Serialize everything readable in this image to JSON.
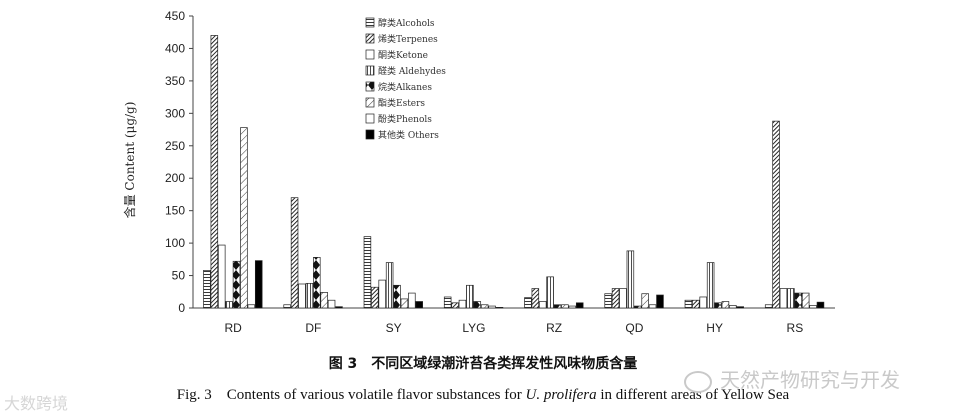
{
  "chart_data": {
    "type": "bar",
    "title": "",
    "xlabel": "",
    "ylabel": "含量 Content (μg/g)",
    "ylim": [
      0,
      450
    ],
    "yticks": [
      0,
      50,
      100,
      150,
      200,
      250,
      300,
      350,
      400,
      450
    ],
    "categories": [
      "RD",
      "DF",
      "SY",
      "LYG",
      "RZ",
      "QD",
      "HY",
      "RS"
    ],
    "series": [
      {
        "name": "醇类Alcohols",
        "pattern": "hlines",
        "values": [
          58,
          5,
          110,
          17,
          16,
          22,
          12,
          5
        ]
      },
      {
        "name": "烯类Terpenes",
        "pattern": "dense-diag",
        "values": [
          420,
          170,
          32,
          8,
          30,
          30,
          12,
          288
        ]
      },
      {
        "name": "酮类Ketone",
        "pattern": "empty",
        "values": [
          97,
          37,
          43,
          12,
          10,
          30,
          17,
          30
        ]
      },
      {
        "name": "醛类 Aldehydes",
        "pattern": "vlines",
        "values": [
          10,
          38,
          70,
          35,
          48,
          88,
          70,
          30
        ]
      },
      {
        "name": "烷类Alkanes",
        "pattern": "diamond",
        "values": [
          72,
          78,
          35,
          10,
          5,
          3,
          8,
          23
        ]
      },
      {
        "name": "酯类Esters",
        "pattern": "sparse-diag",
        "values": [
          278,
          24,
          14,
          5,
          5,
          22,
          10,
          23
        ]
      },
      {
        "name": "酚类Phenols",
        "pattern": "empty",
        "values": [
          5,
          12,
          23,
          3,
          3,
          5,
          4,
          4
        ]
      },
      {
        "name": "其他类 Others",
        "pattern": "solid",
        "values": [
          73,
          2,
          10,
          1,
          8,
          20,
          2,
          9
        ]
      }
    ],
    "legend_position": "top-center",
    "grid": false
  },
  "caption": {
    "chinese": "图 3　不同区域绿潮浒苔各类挥发性风味物质含量",
    "english_prefix": "Fig. 3　Contents of various volatile flavor substances for ",
    "english_italic": "U. prolifera",
    "english_suffix": " in different areas of Yellow Sea"
  },
  "watermarks": {
    "right": "天然产物研究与开发",
    "left": "大数跨境"
  }
}
